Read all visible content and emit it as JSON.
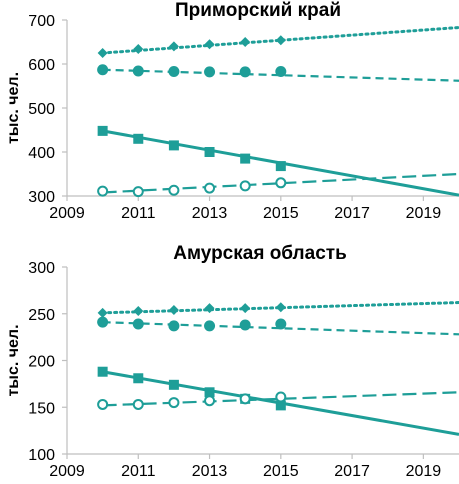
{
  "colors": {
    "series": "#1e9e98",
    "axis": "#bfbfbf",
    "text": "#000000"
  },
  "chart_data": [
    {
      "type": "line",
      "title": "Приморский край",
      "ylabel": "тыс. чел.",
      "xlabel": "",
      "xlim": [
        2009,
        2020
      ],
      "ylim": [
        300,
        700
      ],
      "xticks": [
        "2009",
        "2011",
        "2013",
        "2015",
        "2017",
        "2019"
      ],
      "yticks": [
        "300",
        "400",
        "500",
        "600",
        "700"
      ],
      "grid": false,
      "series": [
        {
          "marker": "diamond",
          "line": "dotted",
          "x": [
            2010,
            2011,
            2012,
            2013,
            2014,
            2015
          ],
          "values": [
            625,
            634,
            640,
            645,
            650,
            654
          ],
          "trend": {
            "x": [
              2010,
              2020
            ],
            "y": [
              625,
              683
            ]
          }
        },
        {
          "marker": "circle",
          "line": "dashed",
          "x": [
            2010,
            2011,
            2012,
            2013,
            2014,
            2015
          ],
          "values": [
            587,
            584,
            583,
            582,
            582,
            583
          ],
          "trend": {
            "x": [
              2010,
              2020
            ],
            "y": [
              587,
              562
            ]
          }
        },
        {
          "marker": "square",
          "line": "solid",
          "x": [
            2010,
            2011,
            2012,
            2013,
            2014,
            2015
          ],
          "values": [
            448,
            430,
            415,
            400,
            385,
            368
          ],
          "trend": {
            "x": [
              2010,
              2020
            ],
            "y": [
              448,
              302
            ]
          }
        },
        {
          "marker": "open-circle",
          "line": "long-dashed",
          "x": [
            2010,
            2011,
            2012,
            2013,
            2014,
            2015
          ],
          "values": [
            311,
            310,
            313,
            318,
            323,
            330
          ],
          "trend": {
            "x": [
              2010,
              2020
            ],
            "y": [
              308,
              350
            ]
          }
        }
      ]
    },
    {
      "type": "line",
      "title": "Амурская область",
      "ylabel": "тыс. чел.",
      "xlabel": "",
      "xlim": [
        2009,
        2020
      ],
      "ylim": [
        100,
        300
      ],
      "xticks": [
        "2009",
        "2011",
        "2013",
        "2015",
        "2017",
        "2019"
      ],
      "yticks": [
        "100",
        "150",
        "200",
        "250",
        "300"
      ],
      "grid": false,
      "series": [
        {
          "marker": "diamond",
          "line": "dotted",
          "x": [
            2010,
            2011,
            2012,
            2013,
            2014,
            2015
          ],
          "values": [
            251,
            253,
            254,
            256,
            256,
            257
          ],
          "trend": {
            "x": [
              2010,
              2020
            ],
            "y": [
              251,
              262
            ]
          }
        },
        {
          "marker": "circle",
          "line": "dashed",
          "x": [
            2010,
            2011,
            2012,
            2013,
            2014,
            2015
          ],
          "values": [
            241,
            239,
            237,
            237,
            238,
            239
          ],
          "trend": {
            "x": [
              2010,
              2020
            ],
            "y": [
              241,
              228
            ]
          }
        },
        {
          "marker": "square",
          "line": "solid",
          "x": [
            2010,
            2011,
            2012,
            2013,
            2014,
            2015
          ],
          "values": [
            188,
            181,
            174,
            166,
            159,
            152
          ],
          "trend": {
            "x": [
              2010,
              2020
            ],
            "y": [
              188,
              121
            ]
          }
        },
        {
          "marker": "open-circle",
          "line": "long-dashed",
          "x": [
            2010,
            2011,
            2012,
            2013,
            2014,
            2015
          ],
          "values": [
            153,
            153,
            155,
            157,
            159,
            161
          ],
          "trend": {
            "x": [
              2010,
              2020
            ],
            "y": [
              152,
              166
            ]
          }
        }
      ]
    }
  ]
}
